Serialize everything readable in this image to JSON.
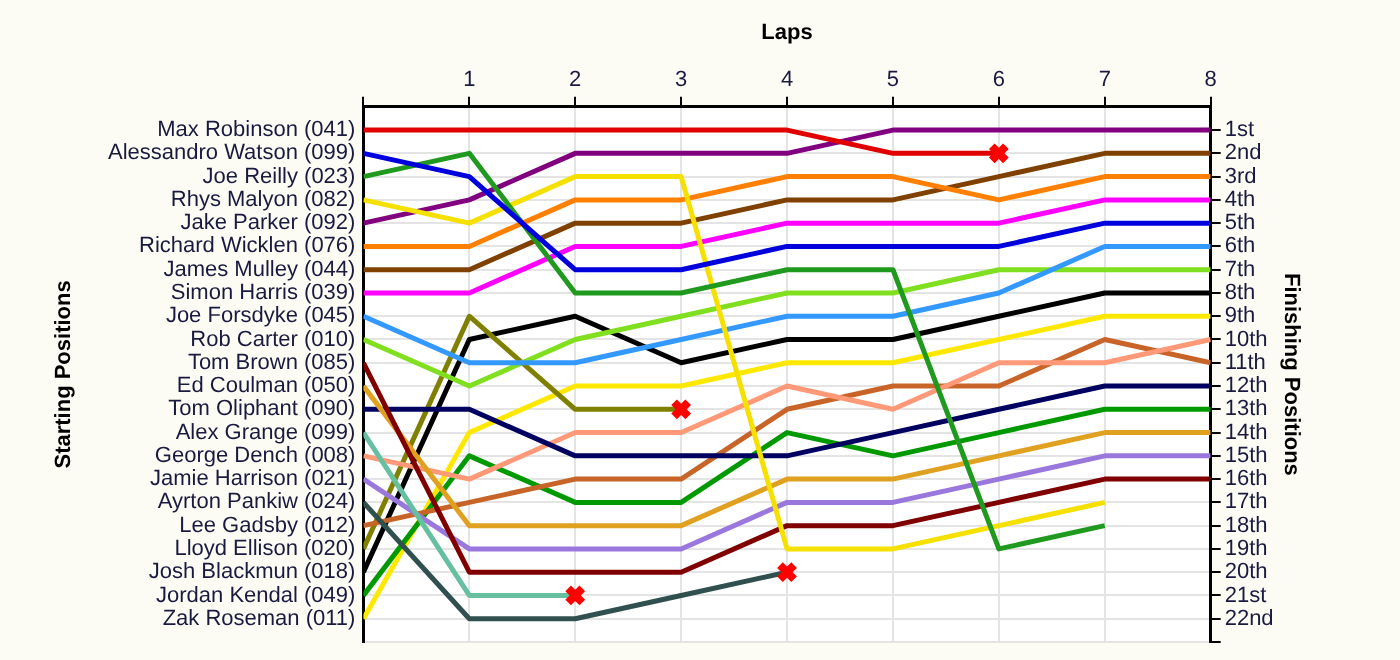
{
  "chart_data": {
    "type": "line",
    "xlabel": "Laps",
    "y2label": "Finishing Positions",
    "annotations": [
      "Starting Positions"
    ],
    "x": [
      0,
      1,
      2,
      3,
      4,
      5,
      6,
      7,
      8
    ],
    "xlim": [
      0,
      8
    ],
    "xticks": [
      {
        "value": 0,
        "label": null
      },
      1,
      2,
      3,
      4,
      5,
      6,
      7,
      8
    ],
    "ylim": [
      23,
      0
    ],
    "yticks": [
      {
        "value": 1,
        "label": "1st"
      },
      {
        "value": 2,
        "label": "2nd"
      },
      {
        "value": 3,
        "label": "3rd"
      },
      {
        "value": 4,
        "label": "4th"
      },
      {
        "value": 5,
        "label": "5th"
      },
      {
        "value": 6,
        "label": "6th"
      },
      {
        "value": 7,
        "label": "7th"
      },
      {
        "value": 8,
        "label": "8th"
      },
      {
        "value": 9,
        "label": "9th"
      },
      {
        "value": 10,
        "label": "10th"
      },
      {
        "value": 11,
        "label": "11th"
      },
      {
        "value": 12,
        "label": "12th"
      },
      {
        "value": 13,
        "label": "13th"
      },
      {
        "value": 14,
        "label": "14th"
      },
      {
        "value": 15,
        "label": "15th"
      },
      {
        "value": 16,
        "label": "16th"
      },
      {
        "value": 17,
        "label": "17th"
      },
      {
        "value": 18,
        "label": "18th"
      },
      {
        "value": 19,
        "label": "19th"
      },
      {
        "value": 20,
        "label": "20th"
      },
      {
        "value": 21,
        "label": "21st"
      },
      {
        "value": 22,
        "label": "22nd"
      },
      {
        "value": 23,
        "label": null
      }
    ],
    "grid": true,
    "legend": false,
    "series": [
      {
        "name": "Max Robinson (041)",
        "color": "#e00000",
        "values": [
          1,
          1,
          1,
          1,
          1,
          2,
          2,
          null,
          null
        ]
      },
      {
        "name": "Alessandro Watson (099)",
        "color": "#0000dd",
        "values": [
          2,
          3,
          7,
          7,
          6,
          6,
          6,
          5,
          5
        ]
      },
      {
        "name": "Joe Reilly (023)",
        "color": "#1f9a1f",
        "values": [
          3,
          2,
          8,
          8,
          7,
          7,
          19,
          18,
          null
        ]
      },
      {
        "name": "Rhys Malyon (082)",
        "color": "#f5e000",
        "values": [
          4,
          5,
          3,
          3,
          19,
          19,
          18,
          17,
          null
        ]
      },
      {
        "name": "Jake Parker (092)",
        "color": "#800080",
        "values": [
          5,
          4,
          2,
          2,
          2,
          1,
          1,
          1,
          1
        ]
      },
      {
        "name": "Richard Wicklen (076)",
        "color": "#ff8000",
        "values": [
          6,
          6,
          4,
          4,
          3,
          3,
          4,
          3,
          3
        ]
      },
      {
        "name": "James Mulley (044)",
        "color": "#804000",
        "values": [
          7,
          7,
          5,
          5,
          4,
          4,
          3,
          2,
          2
        ]
      },
      {
        "name": "Simon Harris (039)",
        "color": "#ff00ff",
        "values": [
          8,
          8,
          6,
          6,
          5,
          5,
          5,
          4,
          4
        ]
      },
      {
        "name": "Joe Forsdyke (045)",
        "color": "#3399ff",
        "values": [
          9,
          11,
          11,
          10,
          9,
          9,
          8,
          6,
          6
        ]
      },
      {
        "name": "Rob Carter (010)",
        "color": "#80e020",
        "values": [
          10,
          12,
          10,
          9,
          8,
          8,
          7,
          7,
          7
        ]
      },
      {
        "name": "Tom Brown (085)",
        "color": "#800000",
        "values": [
          11,
          20,
          20,
          20,
          18,
          18,
          17,
          16,
          16
        ]
      },
      {
        "name": "Ed Coulman (050)",
        "color": "#e0a020",
        "values": [
          12,
          18,
          18,
          18,
          16,
          16,
          15,
          14,
          14
        ]
      },
      {
        "name": "Tom Oliphant (090)",
        "color": "#000060",
        "values": [
          13,
          13,
          15,
          15,
          15,
          14,
          13,
          12,
          12
        ]
      },
      {
        "name": "Alex Grange (099)",
        "color": "#66c0a0",
        "values": [
          14,
          21,
          21,
          null,
          null,
          null,
          null,
          null,
          null
        ]
      },
      {
        "name": "George Dench (008)",
        "color": "#ff9977",
        "values": [
          15,
          16,
          14,
          14,
          12,
          13,
          11,
          11,
          10
        ]
      },
      {
        "name": "Jamie Harrison (021)",
        "color": "#9977dd",
        "values": [
          16,
          19,
          19,
          19,
          17,
          17,
          16,
          15,
          15
        ]
      },
      {
        "name": "Ayrton Pankiw (024)",
        "color": "#305050",
        "values": [
          17,
          22,
          22,
          21,
          20,
          null,
          null,
          null,
          null
        ]
      },
      {
        "name": "Lee Gadsby (012)",
        "color": "#c86428",
        "values": [
          18,
          17,
          16,
          16,
          13,
          12,
          12,
          10,
          11
        ]
      },
      {
        "name": "Lloyd Ellison (020)",
        "color": "#808000",
        "values": [
          19,
          9,
          13,
          13,
          null,
          null,
          null,
          null,
          null
        ]
      },
      {
        "name": "Josh Blackmun (018)",
        "color": "#000000",
        "values": [
          20,
          10,
          9,
          11,
          10,
          10,
          9,
          8,
          8
        ]
      },
      {
        "name": "Jordan Kendal (049)",
        "color": "#009900",
        "values": [
          21,
          15,
          17,
          17,
          14,
          15,
          14,
          13,
          13
        ]
      },
      {
        "name": "Zak Roseman (011)",
        "color": "#ffe800",
        "values": [
          22,
          14,
          12,
          12,
          11,
          11,
          10,
          9,
          9
        ]
      },
      {
        "type": "scatter",
        "color": "#ff0000",
        "marker": "cross",
        "x": [
          2,
          3,
          4,
          6
        ],
        "values": [
          21,
          13,
          20,
          2
        ]
      }
    ]
  }
}
